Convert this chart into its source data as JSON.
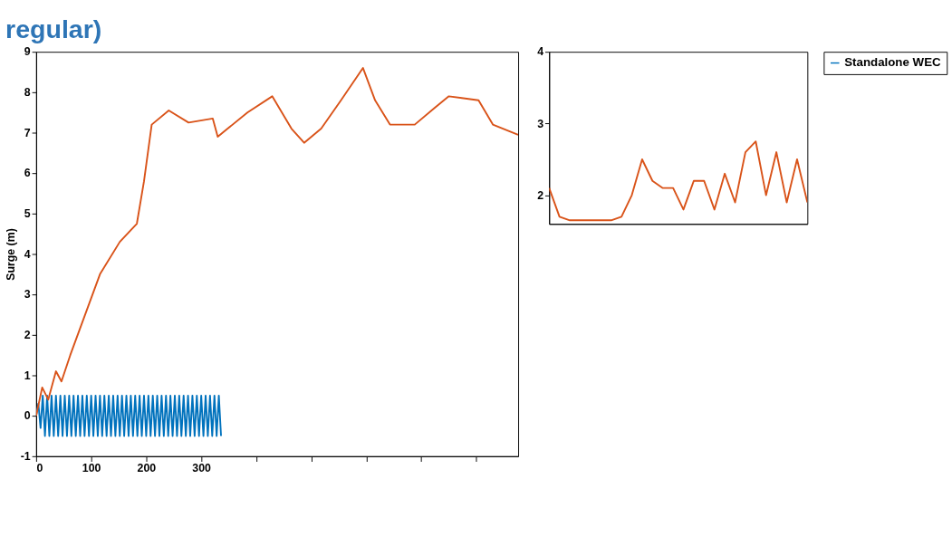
{
  "chart_data": [
    {
      "type": "line",
      "title": "regular)",
      "ylabel": "Surge (m)",
      "xlim": [
        0,
        876
      ],
      "xticks": [
        0,
        100,
        200,
        300,
        {
          "value": 400,
          "label": null
        },
        {
          "value": 500,
          "label": null
        },
        {
          "value": 600,
          "label": null
        },
        {
          "value": 700,
          "label": null
        },
        {
          "value": 800,
          "label": null
        }
      ],
      "ylim": [
        -1,
        9
      ],
      "yticks": [
        -1,
        0,
        1,
        2,
        3,
        4,
        5,
        6,
        7,
        8,
        9
      ],
      "grid": false,
      "legend": "right",
      "series": [
        {
          "name": "Standalone WEC",
          "color": "#0072bd",
          "x": [
            0,
            4,
            8,
            12,
            16,
            20,
            24,
            28,
            32,
            36,
            40,
            44,
            48,
            52,
            56,
            60,
            64,
            68,
            72,
            76,
            80,
            84,
            88,
            92,
            96,
            100,
            104,
            108,
            112,
            116,
            120,
            124,
            128,
            132,
            136,
            140,
            144,
            148,
            152,
            156,
            160,
            164,
            168,
            172,
            176,
            180,
            184,
            188,
            192,
            196,
            200,
            204,
            208,
            212,
            216,
            220,
            224,
            228,
            232,
            236,
            240,
            244,
            248,
            252,
            256,
            260,
            264,
            268,
            272,
            276,
            280,
            284,
            288,
            292,
            296,
            300,
            304,
            308,
            312,
            316,
            320,
            324,
            328,
            332,
            336
          ],
          "values": [
            0,
            0.3,
            -0.3,
            0.5,
            -0.5,
            0.5,
            -0.5,
            0.5,
            -0.5,
            0.5,
            -0.5,
            0.5,
            -0.5,
            0.5,
            -0.5,
            0.5,
            -0.5,
            0.5,
            -0.5,
            0.5,
            -0.5,
            0.5,
            -0.5,
            0.5,
            -0.5,
            0.5,
            -0.5,
            0.5,
            -0.5,
            0.5,
            -0.5,
            0.5,
            -0.5,
            0.5,
            -0.5,
            0.5,
            -0.5,
            0.5,
            -0.5,
            0.5,
            -0.5,
            0.5,
            -0.5,
            0.5,
            -0.5,
            0.5,
            -0.5,
            0.5,
            -0.5,
            0.5,
            -0.5,
            0.5,
            -0.5,
            0.5,
            -0.5,
            0.5,
            -0.5,
            0.5,
            -0.5,
            0.5,
            -0.5,
            0.5,
            -0.5,
            0.5,
            -0.5,
            0.5,
            -0.5,
            0.5,
            -0.5,
            0.5,
            -0.5,
            0.5,
            -0.5,
            0.5,
            -0.5,
            0.5,
            -0.5,
            0.5,
            -0.5,
            0.5,
            -0.5,
            0.5,
            -0.5,
            0.5,
            -0.5
          ]
        },
        {
          "color": "#d95319",
          "x": [
            0,
            11,
            22,
            36,
            46,
            62,
            116,
            152,
            183,
            196,
            210,
            241,
            277,
            321,
            330,
            348,
            384,
            429,
            464,
            487,
            518,
            554,
            594,
            616,
            643,
            688,
            723,
            750,
            804,
            830,
            876
          ],
          "values": [
            0,
            0.7,
            0.4,
            1.1,
            0.85,
            1.5,
            3.5,
            4.3,
            4.75,
            5.8,
            7.2,
            7.55,
            7.25,
            7.35,
            6.9,
            7.1,
            7.5,
            7.9,
            7.1,
            6.75,
            7.1,
            7.8,
            8.6,
            7.8,
            7.2,
            7.2,
            7.6,
            7.9,
            7.8,
            7.2,
            6.95
          ]
        }
      ]
    },
    {
      "type": "line",
      "categories": [
        null,
        null,
        null,
        null,
        null,
        null,
        null,
        null,
        null,
        null,
        null,
        null,
        null,
        null,
        null,
        null,
        null,
        null,
        null,
        null,
        null,
        null,
        null,
        null,
        null,
        null
      ],
      "ylim": [
        1.6,
        4
      ],
      "yticks": [
        2,
        3,
        4
      ],
      "grid": false,
      "series": [
        {
          "color": "#d95319",
          "values": [
            2.1,
            1.7,
            1.65,
            1.65,
            1.65,
            1.65,
            1.65,
            1.7,
            2.0,
            2.5,
            2.2,
            2.1,
            2.1,
            1.8,
            2.2,
            2.2,
            1.8,
            2.3,
            1.9,
            2.6,
            2.75,
            2.0,
            2.6,
            1.9,
            2.5,
            1.9
          ]
        }
      ]
    }
  ]
}
